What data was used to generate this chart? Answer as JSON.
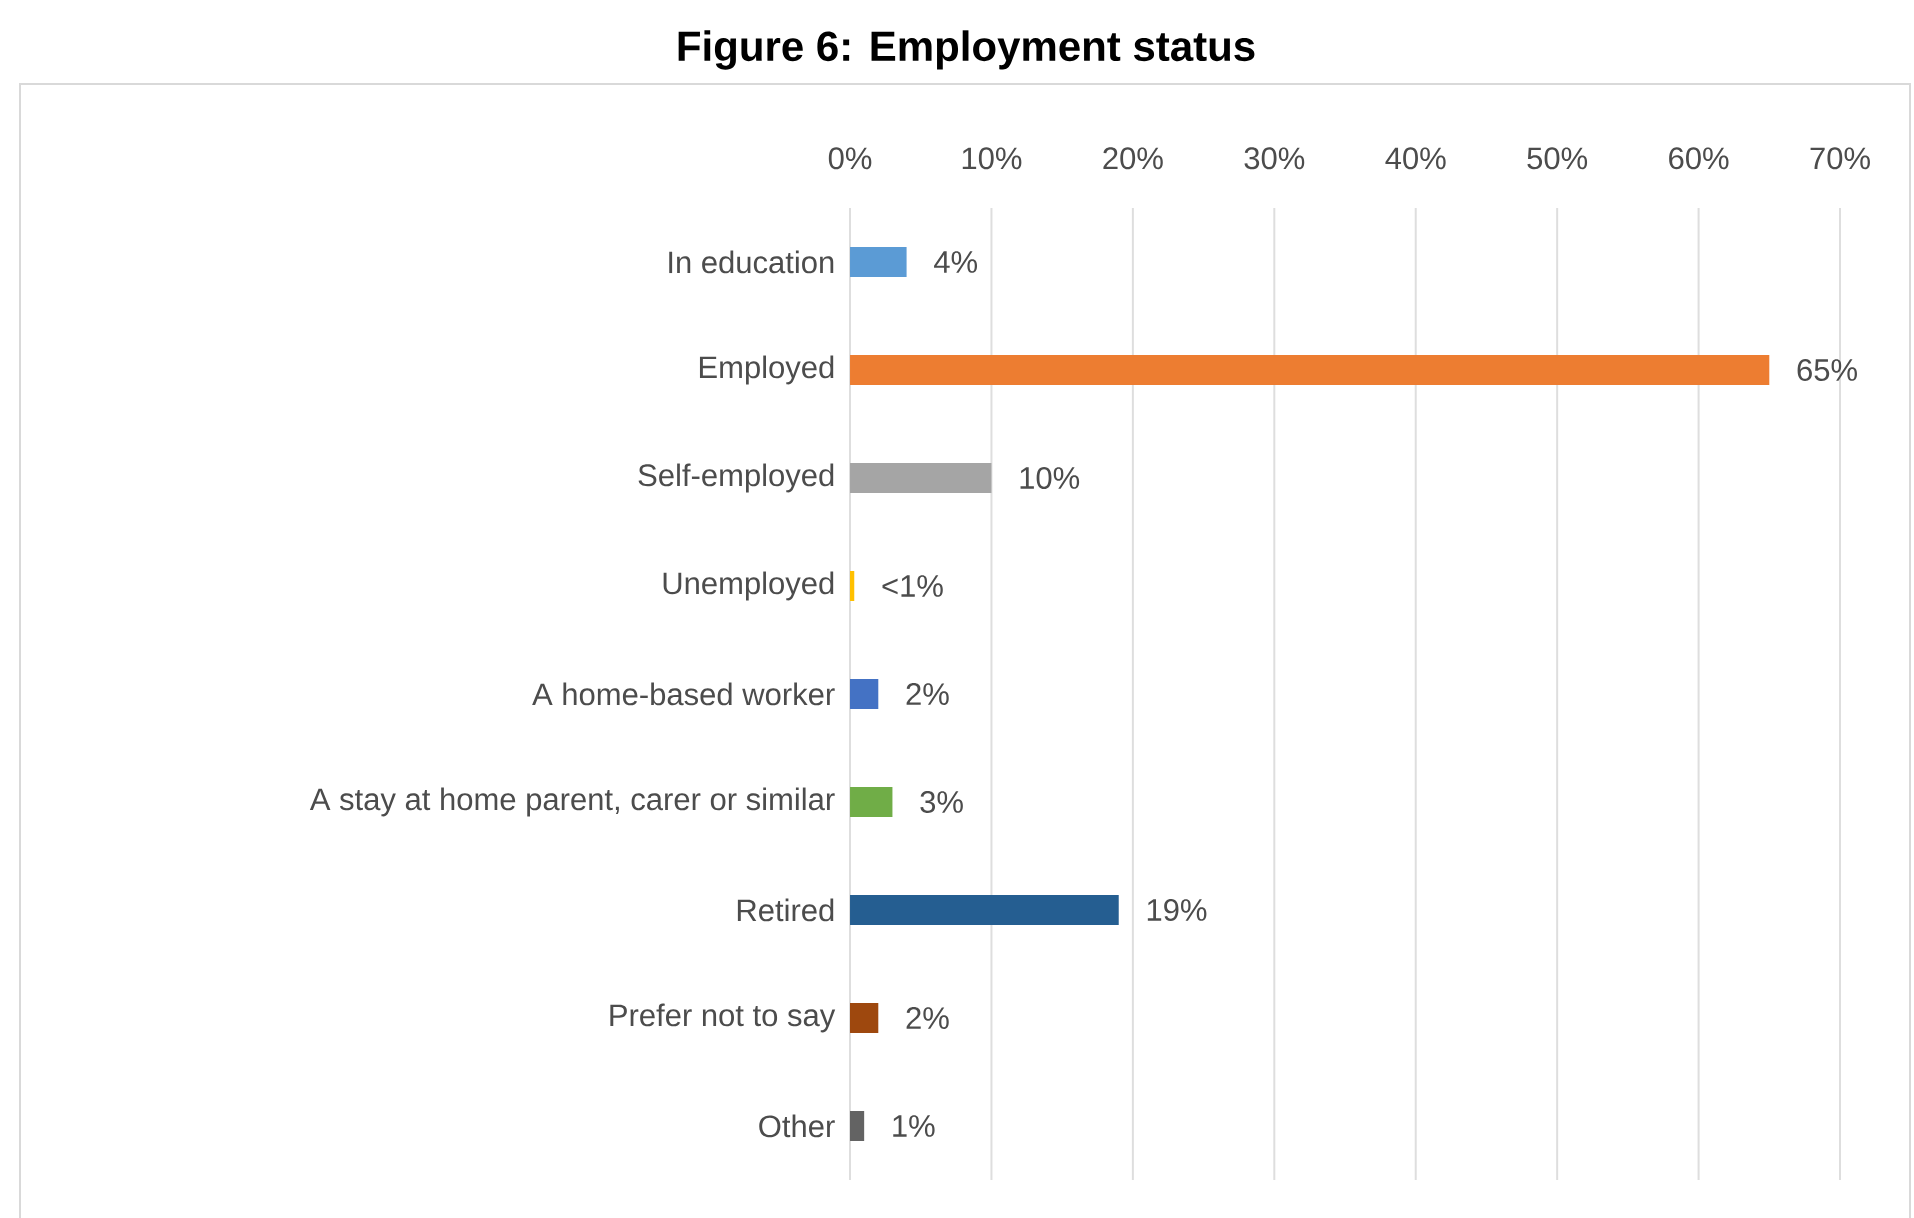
{
  "chart_data": {
    "type": "bar",
    "orientation": "horizontal",
    "title": "Figure 6: Employment status",
    "categories": [
      "In education",
      "Employed",
      "Self-employed",
      "Unemployed",
      "A home-based worker",
      "A stay at home parent, carer or similar",
      "Retired",
      "Prefer not to say",
      "Other"
    ],
    "values": [
      4,
      65,
      10,
      0.3,
      2,
      3,
      19,
      2,
      1
    ],
    "value_labels": [
      "4%",
      "65%",
      "10%",
      "<1%",
      "2%",
      "3%",
      "19%",
      "2%",
      "1%"
    ],
    "colors": [
      "#5b9bd5",
      "#ed7d31",
      "#a5a5a5",
      "#ffc000",
      "#4472c4",
      "#70ad47",
      "#255e91",
      "#9e480e",
      "#636363"
    ],
    "xlim": [
      0,
      70
    ],
    "xticks": [
      {
        "value": 0,
        "label": "0%"
      },
      {
        "value": 10,
        "label": "10%"
      },
      {
        "value": 20,
        "label": "20%"
      },
      {
        "value": 30,
        "label": "30%"
      },
      {
        "value": 40,
        "label": "40%"
      },
      {
        "value": 50,
        "label": "50%"
      },
      {
        "value": 60,
        "label": "60%"
      },
      {
        "value": 70,
        "label": "70%"
      }
    ],
    "grid": "x"
  }
}
